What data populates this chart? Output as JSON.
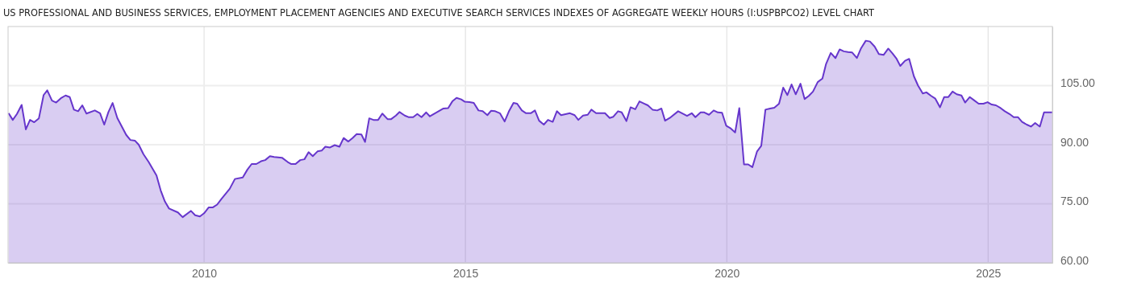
{
  "chart_data": {
    "type": "area",
    "title": "US PROFESSIONAL AND BUSINESS SERVICES, EMPLOYMENT PLACEMENT AGENCIES AND EXECUTIVE SEARCH SERVICES INDEXES OF AGGREGATE WEEKLY HOURS (I:USPBPCO2) LEVEL CHART",
    "xlim": [
      2006.25,
      2026.23
    ],
    "xticks": [
      2010,
      2015,
      2020,
      2025
    ],
    "ylim": [
      60,
      120
    ],
    "yticks": [
      {
        "value": 60,
        "label": "60.00"
      },
      {
        "value": 75,
        "label": "75.00"
      },
      {
        "value": 90,
        "label": "90.00"
      },
      {
        "value": 105,
        "label": "105.00"
      }
    ],
    "grid": true,
    "series": [
      {
        "color": "#6636cc",
        "x": [
          2006.26,
          2006.34,
          2006.42,
          2006.51,
          2006.59,
          2006.67,
          2006.75,
          2006.84,
          2006.93,
          2007.0,
          2007.09,
          2007.17,
          2007.26,
          2007.35,
          2007.43,
          2007.51,
          2007.59,
          2007.67,
          2007.75,
          2007.91,
          2008.01,
          2008.09,
          2008.17,
          2008.25,
          2008.34,
          2008.51,
          2008.59,
          2008.68,
          2008.75,
          2008.84,
          2008.94,
          2009.09,
          2009.17,
          2009.25,
          2009.33,
          2009.5,
          2009.59,
          2009.75,
          2009.83,
          2009.92,
          2010.0,
          2010.09,
          2010.17,
          2010.25,
          2010.33,
          2010.49,
          2010.59,
          2010.74,
          2010.83,
          2010.91,
          2011.0,
          2011.09,
          2011.17,
          2011.26,
          2011.34,
          2011.49,
          2011.6,
          2011.67,
          2011.75,
          2011.84,
          2011.92,
          2012.0,
          2012.08,
          2012.17,
          2012.25,
          2012.32,
          2012.41,
          2012.5,
          2012.59,
          2012.67,
          2012.76,
          2012.84,
          2012.92,
          2013.01,
          2013.08,
          2013.16,
          2013.24,
          2013.33,
          2013.41,
          2013.51,
          2013.58,
          2013.67,
          2013.74,
          2013.84,
          2013.91,
          2014.0,
          2014.08,
          2014.16,
          2014.25,
          2014.32,
          2014.42,
          2014.58,
          2014.67,
          2014.75,
          2014.83,
          2014.92,
          2014.99,
          2015.08,
          2015.16,
          2015.25,
          2015.33,
          2015.42,
          2015.49,
          2015.57,
          2015.66,
          2015.75,
          2015.83,
          2015.92,
          2015.99,
          2016.08,
          2016.16,
          2016.25,
          2016.33,
          2016.41,
          2016.5,
          2016.58,
          2016.67,
          2016.75,
          2016.83,
          2017.0,
          2017.09,
          2017.16,
          2017.25,
          2017.34,
          2017.41,
          2017.5,
          2017.67,
          2017.76,
          2017.83,
          2017.92,
          2017.99,
          2018.08,
          2018.16,
          2018.25,
          2018.33,
          2018.41,
          2018.49,
          2018.58,
          2018.67,
          2018.75,
          2018.82,
          2018.91,
          2019.07,
          2019.24,
          2019.33,
          2019.4,
          2019.5,
          2019.57,
          2019.66,
          2019.75,
          2019.83,
          2019.91,
          2019.99,
          2020.08,
          2020.16,
          2020.24,
          2020.33,
          2020.41,
          2020.49,
          2020.58,
          2020.66,
          2020.74,
          2020.83,
          2020.91,
          2021.0,
          2021.08,
          2021.16,
          2021.24,
          2021.32,
          2021.41,
          2021.49,
          2021.57,
          2021.65,
          2021.74,
          2021.83,
          2021.9,
          2021.99,
          2022.08,
          2022.16,
          2022.24,
          2022.32,
          2022.4,
          2022.49,
          2022.57,
          2022.66,
          2022.74,
          2022.83,
          2022.91,
          2023.0,
          2023.09,
          2023.17,
          2023.25,
          2023.32,
          2023.41,
          2023.49,
          2023.58,
          2023.66,
          2023.75,
          2023.82,
          2023.91,
          2023.99,
          2024.08,
          2024.16,
          2024.24,
          2024.32,
          2024.4,
          2024.49,
          2024.56,
          2024.65,
          2024.73,
          2024.82,
          2024.91,
          2024.99,
          2025.07,
          2025.15,
          2025.24,
          2025.32,
          2025.41,
          2025.49,
          2025.57,
          2025.65,
          2025.74,
          2025.82,
          2025.9,
          2025.99,
          2026.07,
          2026.23
        ],
        "values": [
          98.0,
          96.3,
          97.8,
          100.1,
          93.9,
          96.3,
          95.7,
          96.7,
          102.6,
          103.8,
          101.2,
          100.7,
          101.8,
          102.5,
          102.1,
          98.9,
          98.5,
          100.0,
          97.9,
          98.7,
          98.0,
          95.1,
          98.3,
          100.6,
          96.8,
          92.5,
          91.2,
          91.0,
          90.0,
          87.6,
          85.6,
          82.2,
          78.4,
          75.6,
          73.8,
          72.8,
          71.6,
          73.2,
          72.1,
          71.8,
          72.6,
          74.1,
          74.1,
          74.8,
          76.2,
          78.8,
          81.3,
          81.7,
          83.7,
          85.1,
          85.1,
          85.8,
          86.1,
          87.1,
          86.9,
          86.7,
          85.6,
          85.1,
          85.1,
          86.1,
          86.3,
          88.1,
          87.1,
          88.3,
          88.5,
          89.5,
          89.3,
          89.9,
          89.5,
          91.7,
          90.8,
          91.7,
          92.7,
          92.6,
          90.7,
          96.7,
          96.3,
          96.3,
          97.9,
          96.5,
          96.5,
          97.4,
          98.3,
          97.4,
          97.0,
          97.0,
          97.8,
          97.0,
          98.2,
          97.2,
          98.0,
          99.2,
          99.3,
          101.0,
          101.9,
          101.5,
          100.9,
          100.8,
          100.6,
          98.7,
          98.5,
          97.5,
          98.6,
          98.5,
          98.0,
          95.9,
          98.4,
          100.6,
          100.4,
          98.7,
          98.0,
          98.0,
          98.7,
          96.1,
          95.1,
          96.3,
          95.8,
          98.5,
          97.5,
          98.0,
          97.5,
          96.3,
          97.4,
          97.6,
          98.9,
          98.0,
          98.0,
          96.8,
          97.1,
          98.5,
          98.2,
          96.0,
          99.5,
          99.0,
          101.0,
          100.5,
          100.0,
          98.9,
          98.7,
          99.2,
          96.1,
          96.8,
          98.5,
          97.3,
          98.0,
          97.0,
          98.2,
          98.2,
          97.6,
          98.7,
          98.2,
          98.1,
          94.8,
          94.1,
          93.1,
          99.3,
          85.0,
          85.0,
          84.3,
          88.3,
          89.7,
          98.9,
          99.2,
          99.4,
          100.4,
          104.5,
          102.6,
          105.3,
          102.8,
          105.5,
          101.6,
          102.4,
          103.5,
          105.9,
          106.8,
          110.5,
          113.3,
          112.0,
          114.2,
          113.7,
          113.5,
          113.4,
          112.0,
          114.5,
          116.4,
          116.2,
          114.9,
          113.0,
          112.8,
          114.4,
          113.2,
          111.8,
          110.0,
          111.3,
          111.8,
          107.4,
          105.0,
          103.0,
          103.3,
          102.4,
          101.7,
          99.5,
          102.1,
          102.1,
          103.5,
          102.8,
          102.5,
          100.7,
          102.1,
          101.3,
          100.4,
          100.4,
          100.8,
          100.2,
          100.0,
          99.3,
          98.5,
          97.8,
          97.0,
          97.0,
          95.8,
          95.1,
          94.6,
          95.5,
          94.6,
          98.2,
          98.2
        ]
      }
    ]
  }
}
